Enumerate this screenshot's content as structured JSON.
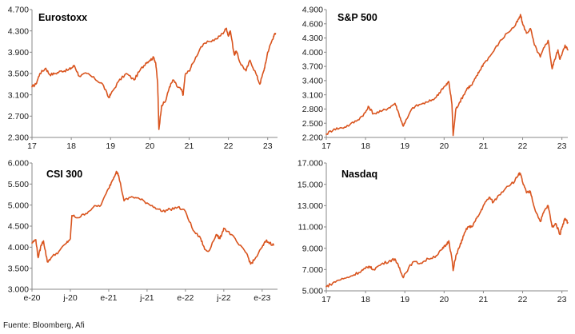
{
  "source": "Fuente: Bloomberg, Afi",
  "colors": {
    "series": "#D9541E",
    "axis": "#888888"
  },
  "chart_data": [
    {
      "type": "line",
      "title": "Eurostoxx",
      "x_ticks": [
        "17",
        "18",
        "19",
        "20",
        "21",
        "22",
        "23"
      ],
      "x_range": [
        2017.0,
        2023.25
      ],
      "ylim": [
        2300,
        4700
      ],
      "y_ticks": [
        "4.700",
        "4.300",
        "3.900",
        "3.500",
        "3.100",
        "2.700",
        "2.300"
      ],
      "y_tick_values": [
        4700,
        4300,
        3900,
        3500,
        3100,
        2700,
        2300
      ],
      "series": [
        {
          "x": [
            2017.0,
            2017.1,
            2017.2,
            2017.35,
            2017.45,
            2017.6,
            2017.75,
            2017.9,
            2018.0,
            2018.08,
            2018.2,
            2018.4,
            2018.6,
            2018.8,
            2018.95,
            2019.0,
            2019.2,
            2019.4,
            2019.6,
            2019.75,
            2019.9,
            2020.0,
            2020.1,
            2020.15,
            2020.2,
            2020.23,
            2020.3,
            2020.4,
            2020.5,
            2020.6,
            2020.7,
            2020.8,
            2020.85,
            2020.9,
            2021.0,
            2021.1,
            2021.3,
            2021.5,
            2021.7,
            2021.85,
            2021.95,
            2022.0,
            2022.05,
            2022.15,
            2022.2,
            2022.3,
            2022.45,
            2022.55,
            2022.7,
            2022.8,
            2022.9,
            2022.95,
            2023.0,
            2023.1,
            2023.15,
            2023.2
          ],
          "y": [
            3250,
            3300,
            3500,
            3600,
            3480,
            3500,
            3550,
            3560,
            3600,
            3650,
            3450,
            3500,
            3400,
            3300,
            3050,
            3100,
            3350,
            3500,
            3380,
            3560,
            3700,
            3750,
            3800,
            3700,
            3300,
            2450,
            2900,
            2980,
            3250,
            3380,
            3250,
            3200,
            3100,
            3480,
            3550,
            3700,
            4000,
            4100,
            4150,
            4250,
            4350,
            4200,
            4300,
            3850,
            3920,
            3700,
            3550,
            3750,
            3500,
            3300,
            3550,
            3700,
            3900,
            4100,
            4200,
            4250
          ]
        }
      ]
    },
    {
      "type": "line",
      "title": "S&P 500",
      "x_ticks": [
        "17",
        "18",
        "19",
        "20",
        "21",
        "22",
        "23"
      ],
      "x_range": [
        2017.0,
        2023.15
      ],
      "ylim": [
        2200,
        4900
      ],
      "y_ticks": [
        "4.900",
        "4.600",
        "4.300",
        "4.000",
        "3.700",
        "3.400",
        "3.100",
        "2.800",
        "2.500",
        "2.200"
      ],
      "y_tick_values": [
        4900,
        4600,
        4300,
        4000,
        3700,
        3400,
        3100,
        2800,
        2500,
        2200
      ],
      "series": [
        {
          "x": [
            2017.0,
            2017.2,
            2017.4,
            2017.6,
            2017.8,
            2018.0,
            2018.08,
            2018.2,
            2018.4,
            2018.6,
            2018.75,
            2018.85,
            2018.95,
            2019.0,
            2019.2,
            2019.4,
            2019.6,
            2019.8,
            2019.95,
            2020.05,
            2020.12,
            2020.2,
            2020.23,
            2020.3,
            2020.4,
            2020.5,
            2020.6,
            2020.7,
            2020.8,
            2020.9,
            2021.0,
            2021.2,
            2021.4,
            2021.6,
            2021.8,
            2021.9,
            2021.95,
            2022.0,
            2022.1,
            2022.2,
            2022.3,
            2022.45,
            2022.55,
            2022.65,
            2022.75,
            2022.8,
            2022.9,
            2022.95,
            2023.0,
            2023.08,
            2023.15
          ],
          "y": [
            2270,
            2380,
            2400,
            2470,
            2570,
            2730,
            2850,
            2700,
            2750,
            2830,
            2920,
            2700,
            2450,
            2500,
            2830,
            2900,
            2950,
            3050,
            3230,
            3300,
            3380,
            2900,
            2240,
            2800,
            2950,
            3100,
            3250,
            3300,
            3450,
            3600,
            3750,
            3950,
            4200,
            4400,
            4550,
            4700,
            4780,
            4600,
            4400,
            4500,
            4150,
            3900,
            4100,
            4250,
            3650,
            3800,
            4050,
            3850,
            3950,
            4150,
            4050
          ]
        }
      ]
    },
    {
      "type": "line",
      "title": "CSI 300",
      "x_ticks": [
        "e-20",
        "j-20",
        "e-21",
        "j-21",
        "e-22",
        "j-22",
        "e-23"
      ],
      "x_range": [
        2020.0,
        2023.2
      ],
      "ylim": [
        3000,
        6000
      ],
      "y_ticks": [
        "6.000",
        "5.500",
        "5.000",
        "4.500",
        "4.000",
        "3.500",
        "3.000"
      ],
      "y_tick_values": [
        6000,
        5500,
        5000,
        4500,
        4000,
        3500,
        3000
      ],
      "series": [
        {
          "x": [
            2020.0,
            2020.05,
            2020.08,
            2020.12,
            2020.15,
            2020.2,
            2020.25,
            2020.35,
            2020.45,
            2020.5,
            2020.52,
            2020.6,
            2020.7,
            2020.8,
            2020.9,
            2021.0,
            2021.05,
            2021.1,
            2021.13,
            2021.2,
            2021.3,
            2021.4,
            2021.5,
            2021.6,
            2021.7,
            2021.8,
            2021.9,
            2022.0,
            2022.1,
            2022.2,
            2022.25,
            2022.3,
            2022.4,
            2022.45,
            2022.5,
            2022.6,
            2022.7,
            2022.8,
            2022.85,
            2022.9,
            2023.0,
            2023.05,
            2023.1,
            2023.15
          ],
          "y": [
            4100,
            4180,
            3750,
            4050,
            4150,
            3650,
            3750,
            3900,
            4100,
            4200,
            4750,
            4700,
            4800,
            4950,
            5000,
            5400,
            5600,
            5800,
            5700,
            5100,
            5200,
            5150,
            5050,
            4950,
            4850,
            4900,
            4950,
            4850,
            4400,
            4200,
            3950,
            3900,
            4300,
            4200,
            4450,
            4300,
            4050,
            3850,
            3600,
            3700,
            4000,
            4150,
            4100,
            4050
          ]
        }
      ]
    },
    {
      "type": "line",
      "title": "Nasdaq",
      "x_ticks": [
        "17",
        "18",
        "19",
        "20",
        "21",
        "22",
        "23"
      ],
      "x_range": [
        2017.0,
        2023.15
      ],
      "ylim": [
        5000,
        17000
      ],
      "y_ticks": [
        "17.000",
        "15.000",
        "13.000",
        "11.000",
        "9.000",
        "7.000",
        "5.000"
      ],
      "y_tick_values": [
        17000,
        15000,
        13000,
        11000,
        9000,
        7000,
        5000
      ],
      "series": [
        {
          "x": [
            2017.0,
            2017.1,
            2017.3,
            2017.5,
            2017.7,
            2017.9,
            2018.0,
            2018.08,
            2018.2,
            2018.4,
            2018.6,
            2018.75,
            2018.85,
            2018.95,
            2019.0,
            2019.2,
            2019.4,
            2019.6,
            2019.8,
            2019.95,
            2020.05,
            2020.12,
            2020.2,
            2020.23,
            2020.3,
            2020.4,
            2020.5,
            2020.6,
            2020.7,
            2020.8,
            2020.9,
            2021.0,
            2021.15,
            2021.25,
            2021.4,
            2021.6,
            2021.8,
            2021.9,
            2021.95,
            2022.0,
            2022.1,
            2022.2,
            2022.3,
            2022.45,
            2022.55,
            2022.65,
            2022.75,
            2022.85,
            2022.95,
            2023.0,
            2023.08,
            2023.15
          ],
          "y": [
            5400,
            5600,
            6000,
            6200,
            6500,
            6900,
            7100,
            7300,
            7000,
            7500,
            7800,
            8000,
            7200,
            6300,
            6600,
            7700,
            7600,
            8000,
            8300,
            8900,
            9300,
            9700,
            8000,
            6900,
            8300,
            9200,
            10200,
            11000,
            11000,
            11600,
            12200,
            13000,
            13800,
            13300,
            14000,
            14800,
            15300,
            16000,
            15900,
            15200,
            14200,
            14300,
            12800,
            11500,
            12500,
            13000,
            11000,
            11300,
            10300,
            11000,
            11800,
            11400
          ]
        }
      ]
    }
  ]
}
